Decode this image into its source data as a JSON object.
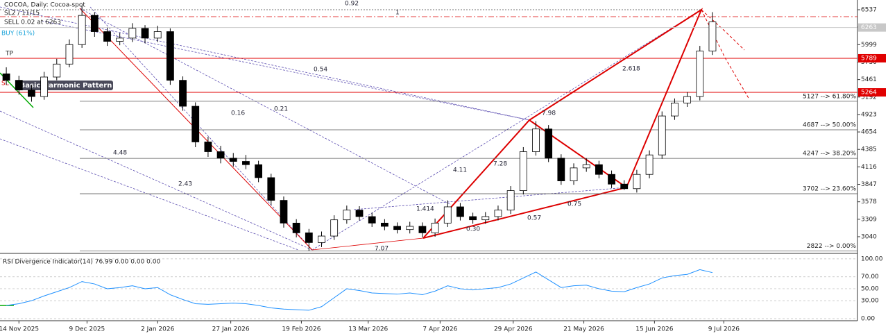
{
  "chart_data": {
    "type": "candlestick",
    "title": "COCOA, Daily:  Cocoa-spot",
    "info_lines": [
      "SL2 / 11/15",
      "SELL 0.02 at 6263"
    ],
    "pattern_title": "Basic Harmonic Pattern",
    "pattern_tags": [
      "BUY (61%)",
      "TP",
      "SL"
    ],
    "ylim": [
      2783,
      6687
    ],
    "yticks": [
      3040,
      3309,
      3578,
      3847,
      4116,
      4385,
      4654,
      4923,
      5192,
      5461,
      5730,
      5999,
      6268,
      6537
    ],
    "xlim": [
      -0.5,
      67.5
    ],
    "xticks": [
      {
        "value": 1,
        "label": "14 Nov 2025"
      },
      {
        "value": 6.4,
        "label": "9 Dec 2025"
      },
      {
        "value": 12,
        "label": "2 Jan 2026"
      },
      {
        "value": 17.8,
        "label": "27 Jan 2026"
      },
      {
        "value": 23.4,
        "label": "19 Feb 2026"
      },
      {
        "value": 28.7,
        "label": "13 Mar 2026"
      },
      {
        "value": 34.4,
        "label": "7 Apr 2026"
      },
      {
        "value": 40.2,
        "label": "29 Apr 2026"
      },
      {
        "value": 45.8,
        "label": "21 May 2026"
      },
      {
        "value": 51.4,
        "label": "15 Jun 2026"
      },
      {
        "value": 56.9,
        "label": "9 Jul 2026"
      }
    ],
    "ohlc": [
      [
        5550,
        5650,
        5380,
        5450
      ],
      [
        5450,
        5520,
        5230,
        5300
      ],
      [
        5300,
        5380,
        5120,
        5200
      ],
      [
        5200,
        5580,
        5150,
        5500
      ],
      [
        5500,
        5780,
        5450,
        5700
      ],
      [
        5700,
        6080,
        5650,
        6000
      ],
      [
        6000,
        6600,
        5950,
        6450
      ],
      [
        6450,
        6500,
        6120,
        6200
      ],
      [
        6200,
        6260,
        5980,
        6050
      ],
      [
        6050,
        6180,
        5990,
        6100
      ],
      [
        6100,
        6330,
        6040,
        6250
      ],
      [
        6250,
        6300,
        6020,
        6100
      ],
      [
        6100,
        6290,
        6040,
        6200
      ],
      [
        6200,
        6250,
        5380,
        5450
      ],
      [
        5450,
        5510,
        4980,
        5050
      ],
      [
        5050,
        5110,
        4420,
        4500
      ],
      [
        4500,
        4580,
        4270,
        4350
      ],
      [
        4350,
        4440,
        4170,
        4250
      ],
      [
        4250,
        4330,
        4120,
        4200
      ],
      [
        4200,
        4300,
        4080,
        4150
      ],
      [
        4150,
        4210,
        3880,
        3950
      ],
      [
        3950,
        4010,
        3530,
        3600
      ],
      [
        3600,
        3660,
        3180,
        3250
      ],
      [
        3250,
        3310,
        3030,
        3100
      ],
      [
        3100,
        3160,
        2822,
        2950
      ],
      [
        2950,
        3120,
        2880,
        3050
      ],
      [
        3050,
        3370,
        2990,
        3300
      ],
      [
        3300,
        3520,
        3240,
        3450
      ],
      [
        3450,
        3510,
        3290,
        3350
      ],
      [
        3350,
        3410,
        3190,
        3250
      ],
      [
        3250,
        3310,
        3140,
        3200
      ],
      [
        3200,
        3260,
        3090,
        3150
      ],
      [
        3150,
        3270,
        3090,
        3200
      ],
      [
        3200,
        3260,
        3030,
        3100
      ],
      [
        3100,
        3320,
        3040,
        3250
      ],
      [
        3250,
        3600,
        3190,
        3500
      ],
      [
        3500,
        3560,
        3290,
        3350
      ],
      [
        3350,
        3410,
        3240,
        3300
      ],
      [
        3300,
        3420,
        3240,
        3350
      ],
      [
        3350,
        3520,
        3290,
        3450
      ],
      [
        3450,
        3820,
        3390,
        3750
      ],
      [
        3750,
        4420,
        3690,
        4350
      ],
      [
        4350,
        4820,
        4290,
        4700
      ],
      [
        4700,
        4760,
        4190,
        4250
      ],
      [
        4250,
        4310,
        3840,
        3900
      ],
      [
        3900,
        4170,
        3840,
        4100
      ],
      [
        4100,
        4250,
        4040,
        4150
      ],
      [
        4150,
        4210,
        3940,
        4000
      ],
      [
        4000,
        4060,
        3790,
        3850
      ],
      [
        3850,
        3910,
        3760,
        3780
      ],
      [
        3780,
        4070,
        3720,
        4000
      ],
      [
        4000,
        4370,
        3940,
        4300
      ],
      [
        4300,
        4970,
        4240,
        4900
      ],
      [
        4900,
        5170,
        4840,
        5100
      ],
      [
        5100,
        5270,
        5040,
        5200
      ],
      [
        5200,
        5980,
        5140,
        5900
      ],
      [
        5900,
        6500,
        5840,
        6350
      ]
    ],
    "fib_levels": [
      {
        "value": 5127,
        "label": "5127 --> 61.80%"
      },
      {
        "value": 4687,
        "label": "4687 --> 50.00%"
      },
      {
        "value": 4247,
        "label": "4247 --> 38.20%"
      },
      {
        "value": 3702,
        "label": "3702 --> 23.60%"
      },
      {
        "value": 2822,
        "label": "2822 --> 0.00%"
      }
    ],
    "price_lines": [
      {
        "value": 6263,
        "label": "6263",
        "color": "#c8c8c8"
      },
      {
        "value": 5789,
        "label": "5789",
        "color": "#e00000"
      },
      {
        "value": 5264,
        "label": "5264",
        "color": "#e00000"
      }
    ],
    "annotations": [
      "0.92",
      "1",
      "0.54",
      "0.16",
      "0.21",
      "4.48",
      "2.43",
      "1.414",
      "4.11",
      "7.28",
      "7.98",
      "2.618",
      "0.30",
      "0.57",
      "0.75",
      "7.07"
    ],
    "rsi": {
      "title": "RSI Divergence Indicator(14) 76.99 0.00 0.00 0.00",
      "color": "#1e90ff",
      "ylim": [
        -3.5,
        108
      ],
      "yticks": [
        {
          "value": 0,
          "label": "0.00"
        },
        {
          "value": 30,
          "label": "30.00"
        },
        {
          "value": 50,
          "label": "50.00"
        },
        {
          "value": 70,
          "label": "70.00"
        },
        {
          "value": 100,
          "label": "100.00"
        }
      ],
      "values": [
        22,
        25,
        30,
        38,
        45,
        52,
        62,
        58,
        50,
        52,
        55,
        50,
        52,
        40,
        32,
        25,
        24,
        25,
        26,
        25,
        22,
        18,
        16,
        15,
        14,
        20,
        35,
        50,
        47,
        43,
        42,
        41,
        43,
        40,
        46,
        55,
        50,
        48,
        50,
        52,
        58,
        68,
        78,
        65,
        52,
        55,
        56,
        50,
        46,
        45,
        52,
        58,
        68,
        72,
        74,
        82,
        77
      ]
    }
  }
}
